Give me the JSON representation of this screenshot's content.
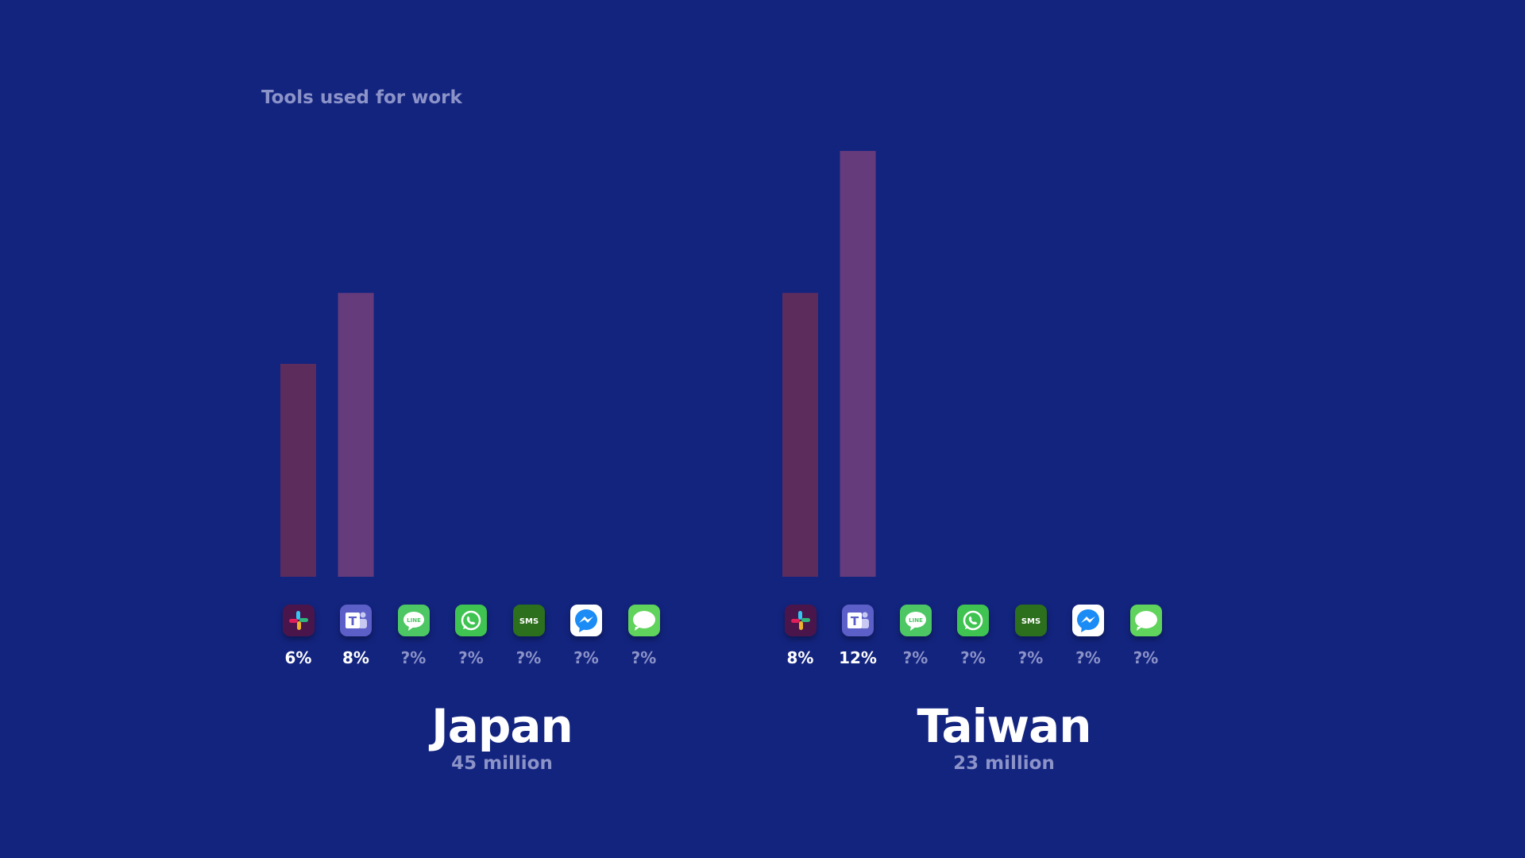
{
  "title": "Tools used for work",
  "colors": {
    "background": "#13247f",
    "slack_bar": "#5c2c5d",
    "teams_bar": "#653b7b",
    "muted_text": "#8c93c8"
  },
  "tools": [
    {
      "key": "slack",
      "icon": "slack-icon",
      "bg": "#4a154b"
    },
    {
      "key": "teams",
      "icon": "microsoft-teams-icon",
      "bg": "#5b5fc7"
    },
    {
      "key": "line",
      "icon": "line-icon",
      "bg": "#4cc764"
    },
    {
      "key": "whatsapp",
      "icon": "whatsapp-icon",
      "bg": "#3fc351"
    },
    {
      "key": "sms",
      "icon": "sms-icon",
      "bg": "#2c6f1c"
    },
    {
      "key": "messenger",
      "icon": "messenger-icon",
      "bg": "#ffffff"
    },
    {
      "key": "messages",
      "icon": "messages-icon",
      "bg": "#5fd35c"
    }
  ],
  "chart_data": [
    {
      "type": "bar",
      "title": "Japan",
      "subtitle": "45 million",
      "ylim": [
        0,
        12
      ],
      "values": [
        6,
        8,
        null,
        null,
        null,
        null,
        null
      ],
      "labels": [
        "6%",
        "8%",
        "?%",
        "?%",
        "?%",
        "?%",
        "?%"
      ]
    },
    {
      "type": "bar",
      "title": "Taiwan",
      "subtitle": "23 million",
      "ylim": [
        0,
        12
      ],
      "values": [
        8,
        12,
        null,
        null,
        null,
        null,
        null
      ],
      "labels": [
        "8%",
        "12%",
        "?%",
        "?%",
        "?%",
        "?%",
        "?%"
      ]
    }
  ]
}
